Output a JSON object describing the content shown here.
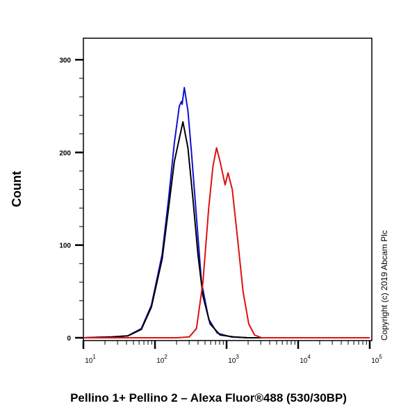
{
  "chart_data": {
    "type": "line",
    "xlabel": "Pellino 1+ Pellino 2 – Alexa Fluor®488 (530/30BP)",
    "ylabel": "Count",
    "xscale": "log",
    "xlim_log10": [
      1,
      5
    ],
    "ylim": [
      0,
      300
    ],
    "x_tick_labels": [
      {
        "base": "10",
        "exp": "1"
      },
      {
        "base": "10",
        "exp": "2"
      },
      {
        "base": "10",
        "exp": "3"
      },
      {
        "base": "10",
        "exp": "4"
      },
      {
        "base": "10",
        "exp": "5"
      }
    ],
    "y_ticks": [
      0,
      100,
      200,
      300
    ],
    "copyright": "Copyright (c) 2019 Abcam Plc",
    "series": [
      {
        "name": "blue",
        "color": "#1010d0",
        "log10_x": [
          1.0,
          1.4,
          1.62,
          1.81,
          1.95,
          2.1,
          2.19,
          2.27,
          2.34,
          2.37,
          2.38,
          2.41,
          2.46,
          2.51,
          2.58,
          2.65,
          2.75,
          2.87,
          3.06,
          3.3,
          5.0
        ],
        "y": [
          0,
          1,
          2,
          10,
          35,
          90,
          150,
          210,
          250,
          255,
          252,
          270,
          245,
          200,
          130,
          60,
          20,
          5,
          1,
          0,
          0
        ]
      },
      {
        "name": "black",
        "color": "#000000",
        "log10_x": [
          1.0,
          1.4,
          1.62,
          1.81,
          1.95,
          2.1,
          2.19,
          2.27,
          2.34,
          2.39,
          2.46,
          2.53,
          2.6,
          2.67,
          2.77,
          2.91,
          3.1,
          3.3,
          5.0
        ],
        "y": [
          0,
          1,
          2,
          9,
          33,
          85,
          140,
          190,
          215,
          233,
          205,
          150,
          90,
          45,
          15,
          3,
          1,
          0,
          0
        ]
      },
      {
        "name": "red",
        "color": "#dd1010",
        "log10_x": [
          1.0,
          2.3,
          2.48,
          2.58,
          2.67,
          2.75,
          2.81,
          2.86,
          2.91,
          2.98,
          3.02,
          3.08,
          3.15,
          3.23,
          3.31,
          3.39,
          3.49,
          5.0
        ],
        "y": [
          0,
          0,
          1,
          10,
          60,
          140,
          185,
          205,
          190,
          165,
          178,
          160,
          110,
          50,
          15,
          3,
          0,
          0
        ]
      }
    ]
  }
}
